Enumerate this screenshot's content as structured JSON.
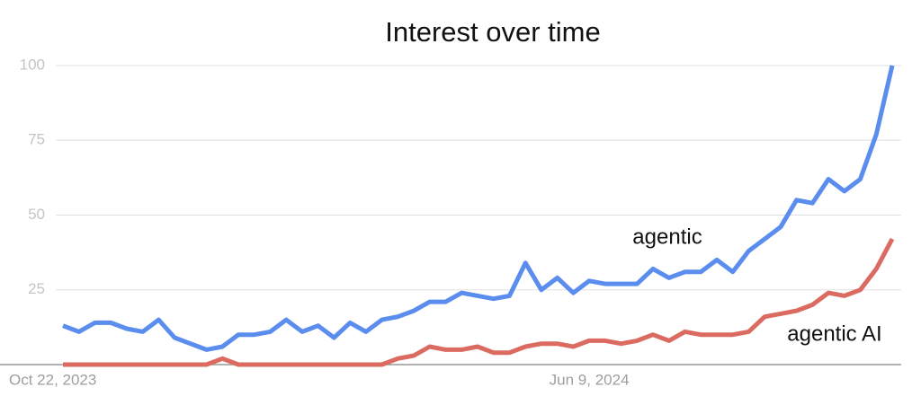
{
  "chart_data": {
    "type": "line",
    "title": "Interest over time",
    "categories": [
      "Oct 22, 2023",
      null,
      null,
      null,
      null,
      null,
      null,
      null,
      null,
      null,
      null,
      null,
      null,
      null,
      null,
      null,
      null,
      null,
      null,
      null,
      null,
      null,
      null,
      null,
      null,
      null,
      null,
      null,
      null,
      null,
      null,
      null,
      null,
      "Jun 9, 2024",
      null,
      null,
      null,
      null,
      null,
      null,
      null,
      null,
      null,
      null,
      null,
      null,
      null,
      null,
      null,
      null,
      null,
      null,
      null
    ],
    "series": [
      {
        "name": "agentic",
        "color": "#5b8def",
        "values": [
          13,
          11,
          14,
          14,
          12,
          11,
          15,
          9,
          7,
          5,
          6,
          10,
          10,
          11,
          15,
          11,
          13,
          9,
          14,
          11,
          15,
          16,
          18,
          21,
          21,
          24,
          23,
          22,
          23,
          34,
          25,
          29,
          24,
          28,
          27,
          27,
          27,
          32,
          29,
          31,
          31,
          35,
          31,
          38,
          42,
          46,
          55,
          54,
          62,
          58,
          62,
          77,
          100
        ]
      },
      {
        "name": "agentic AI",
        "color": "#db6b61",
        "values": [
          0,
          0,
          0,
          0,
          0,
          0,
          0,
          0,
          0,
          0,
          2,
          0,
          0,
          0,
          0,
          0,
          0,
          0,
          0,
          0,
          0,
          2,
          3,
          6,
          5,
          5,
          6,
          4,
          4,
          6,
          7,
          7,
          6,
          8,
          8,
          7,
          8,
          10,
          8,
          11,
          10,
          10,
          10,
          11,
          16,
          17,
          18,
          20,
          24,
          23,
          25,
          32,
          42
        ]
      }
    ],
    "ylim": [
      0,
      100
    ],
    "yticks": [
      25,
      50,
      75,
      100
    ],
    "grid": true
  }
}
